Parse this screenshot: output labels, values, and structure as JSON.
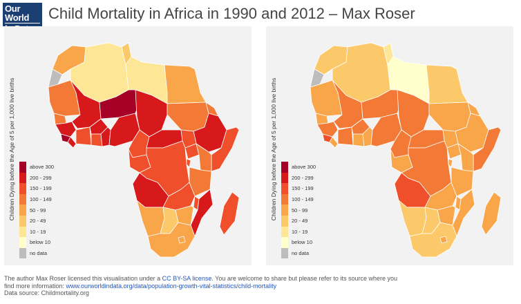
{
  "header": {
    "logo_line1": "Our World",
    "logo_line2": "in Data",
    "title": "Child Mortality in Africa in 1990 and 2012 – Max Roser"
  },
  "legend": {
    "axis_label": "Children Dying before the Age of 5 per 1,000 live births",
    "items": [
      {
        "label": "above 300",
        "color": "#a50026"
      },
      {
        "label": "200 - 299",
        "color": "#d7191c"
      },
      {
        "label": "150 - 199",
        "color": "#ef4f2a"
      },
      {
        "label": "100 - 149",
        "color": "#f37a36"
      },
      {
        "label": "50 - 99",
        "color": "#f9a54a"
      },
      {
        "label": "20 - 49",
        "color": "#fbc96a"
      },
      {
        "label": "10 - 19",
        "color": "#fde797"
      },
      {
        "label": "below 10",
        "color": "#ffffcc"
      },
      {
        "label": "no data",
        "color": "#bdbdbd"
      }
    ]
  },
  "maps": [
    {
      "year": "1990",
      "panel": "left"
    },
    {
      "year": "2012",
      "panel": "right"
    }
  ],
  "footer": {
    "line1_prefix": "The author Max Roser licensed this visualisation under a ",
    "license_link": "CC BY-SA license",
    "line1_suffix": ". You are welcome to share but please refer to its source where you",
    "line2_prefix": "find more information: ",
    "source_link": "www.ourworldindata.org/data/population-growth-vital-statistics/child-mortality",
    "line3": "Data source: Childmortality.org"
  }
}
